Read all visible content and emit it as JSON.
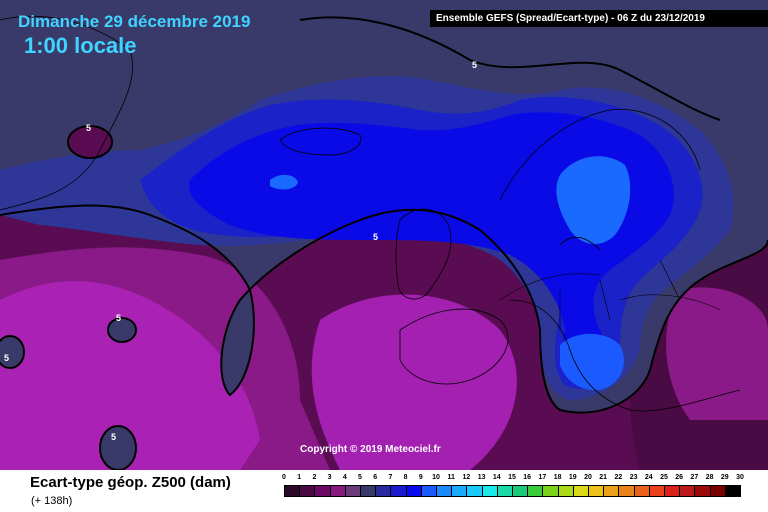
{
  "map": {
    "date_title": "Dimanche 29 décembre 2019",
    "time_title": "1:00 locale",
    "header": "Ensemble GEFS  (Spread/Ecart-type) - 06 Z du 23/12/2019",
    "copyright": "Copyright © 2019 Meteociel.fr",
    "contour_value": "5",
    "field_title": "Ecart-type géop. Z500 (dam)",
    "lead_time": "(+ 138h)",
    "colors": {
      "level_0_4": "#44003a",
      "level_4_5": "#66006a",
      "level_5_6": "#3a3a6a",
      "level_6_7": "#2a3890",
      "level_7_8": "#1a1acc",
      "level_8_9": "#0a0af0",
      "level_9_10": "#1a6aff",
      "magenta_high": "#aa00cc",
      "contour": "#000000"
    }
  },
  "legend": {
    "ticks": [
      "0",
      "1",
      "2",
      "3",
      "4",
      "5",
      "6",
      "7",
      "8",
      "9",
      "10",
      "11",
      "12",
      "13",
      "14",
      "15",
      "16",
      "17",
      "18",
      "19",
      "20",
      "21",
      "22",
      "23",
      "24",
      "25",
      "26",
      "27",
      "28",
      "29",
      "30"
    ],
    "colors": [
      "#2a0a26",
      "#4a0a44",
      "#6a0a64",
      "#8a1a80",
      "#6a3a7a",
      "#3a3a6a",
      "#2a2aa0",
      "#1a1ad0",
      "#0a0af0",
      "#1a5aff",
      "#1a8aff",
      "#1aaaff",
      "#1acaff",
      "#1aeaea",
      "#1adaaa",
      "#1aca7a",
      "#3aca3a",
      "#7ad21a",
      "#aada1a",
      "#dada1a",
      "#eac21a",
      "#eaa21a",
      "#ea821a",
      "#ea621a",
      "#ea421a",
      "#da221a",
      "#ba1a1a",
      "#9a0a0a",
      "#7a0000",
      "#000000"
    ]
  }
}
